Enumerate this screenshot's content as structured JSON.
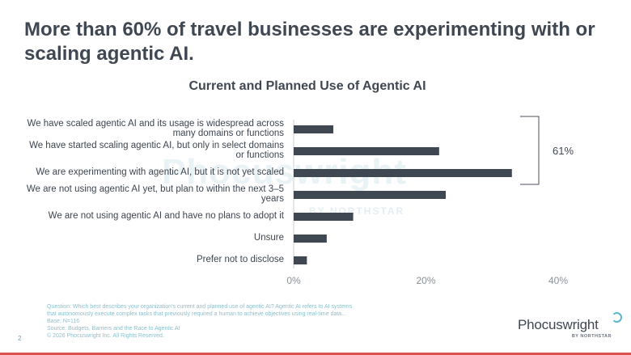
{
  "title": "More than 60% of travel businesses are experimenting with or scaling agentic AI.",
  "watermark": {
    "brand": "Phocuswright",
    "sub": "BY NORTHSTAR"
  },
  "chart_data": {
    "type": "bar",
    "orientation": "horizontal",
    "title": "Current and Planned Use of Agentic AI",
    "categories": [
      "We have scaled agentic AI and its usage is widespread across many domains or functions",
      "We have started scaling agentic AI, but only in select domains or functions",
      "We are experimenting with agentic AI, but it is not yet scaled",
      "We are not using agentic AI yet, but plan to within the next 3–5 years",
      "We are not using agentic AI and have no plans to adopt it",
      "Unsure",
      "Prefer not to disclose"
    ],
    "category_lines": [
      [
        "We have scaled agentic AI and its usage is widespread across",
        "many domains or functions"
      ],
      [
        "We have started scaling agentic AI, but only in select domains",
        "or functions"
      ],
      [
        "We are experimenting with agentic AI, but it is not yet scaled"
      ],
      [
        "We are not using agentic AI yet, but plan to within the next 3–5",
        "years"
      ],
      [
        "We are not using agentic AI and have no plans to adopt it"
      ],
      [
        "Unsure"
      ],
      [
        "Prefer not to disclose"
      ]
    ],
    "values": [
      6,
      22,
      33,
      23,
      9,
      5,
      2
    ],
    "xlim": [
      0,
      40
    ],
    "xticks": [
      0,
      20,
      40
    ],
    "xtick_labels": [
      "0%",
      "20%",
      "40%"
    ],
    "bar_color": "#3f4752",
    "annotation": {
      "label": "61%",
      "spans_categories": [
        0,
        1,
        2
      ]
    },
    "grid": false
  },
  "footnote": {
    "lines": [
      "Question: Which best describes your organization's current and planned use of agentic AI? Agentic AI refers to AI systems",
      "that autonomously execute complex tasks that previously required a human to achieve objectives using real-time data...",
      "Base: N=116",
      "Source: Budgets, Barriers and the Race to Agentic AI",
      "© 2026 Phocuswright Inc. All Rights Reserved."
    ]
  },
  "page_number": "2",
  "logo": {
    "name": "Phocuswright",
    "sub": "BY NORTHSTAR"
  },
  "colors": {
    "accent": "#5bb7d2",
    "footer_bar": "#d9534f",
    "text": "#3f4752"
  }
}
